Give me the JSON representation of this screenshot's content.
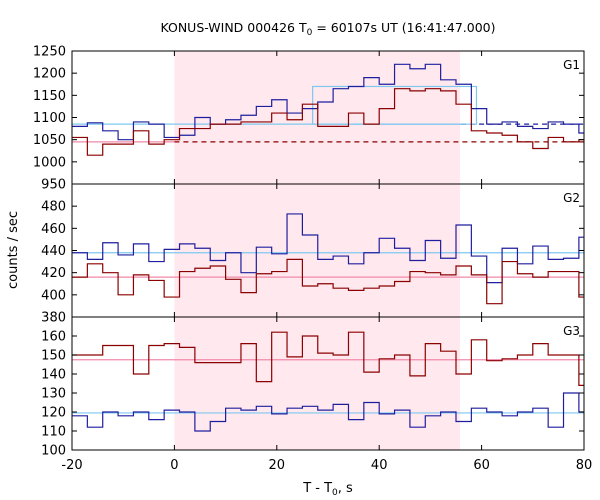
{
  "chart_data": {
    "type": "line",
    "title_prefix": "KONUS-WIND 000426 T",
    "title_sub": "0",
    "title_suffix": " = 60107s UT (16:41:47.000)",
    "xlabel_prefix": "T - T",
    "xlabel_sub": "0",
    "xlabel_suffix": ", s",
    "ylabel": "counts / sec",
    "xlim": [
      -20,
      80
    ],
    "x_ticks": [
      -20,
      0,
      20,
      40,
      60,
      80
    ],
    "highlight_interval": [
      0,
      55.8
    ],
    "colors": {
      "highlight": "#ffe8ee",
      "g_blue": "#1f1f9e",
      "g_red": "#8b0000",
      "bg_blue": "#7ec8f0",
      "bg_red": "#f08aaa"
    },
    "panels": [
      {
        "name": "G1",
        "ylim": [
          950,
          1250
        ],
        "y_ticks": [
          950,
          1000,
          1050,
          1100,
          1150,
          1200,
          1250
        ],
        "bins_x": [
          -20,
          -17,
          -14,
          -11,
          -8,
          -5,
          -2,
          1,
          4,
          7,
          10,
          13,
          16,
          19,
          22,
          25,
          28,
          31,
          34,
          37,
          40,
          43,
          46,
          49,
          52,
          55,
          58,
          61,
          64,
          67,
          70,
          73,
          76,
          79,
          82
        ],
        "series": [
          {
            "color": "blue",
            "values": [
              1080,
              1088,
              1070,
              1050,
              1090,
              1085,
              1055,
              1060,
              1100,
              1085,
              1095,
              1105,
              1125,
              1140,
              1110,
              1120,
              1135,
              1165,
              1170,
              1190,
              1175,
              1220,
              1210,
              1220,
              1185,
              1175,
              1120,
              1085,
              1090,
              1080,
              1075,
              1090,
              1085,
              1065
            ]
          },
          {
            "color": "red",
            "values": [
              1055,
              1015,
              1040,
              1040,
              1070,
              1040,
              1050,
              1075,
              1075,
              1085,
              1085,
              1090,
              1090,
              1110,
              1095,
              1130,
              1080,
              1080,
              1110,
              1085,
              1120,
              1165,
              1160,
              1165,
              1160,
              1130,
              1070,
              1065,
              1060,
              1045,
              1030,
              1055,
              1045,
              1050
            ]
          }
        ],
        "background": [
          {
            "color": "bg_blue",
            "x": [
              -20,
              80
            ],
            "y": 1085,
            "dash_from": 56
          },
          {
            "color": "bg_red",
            "x": [
              -20,
              80
            ],
            "y": 1045,
            "dash_from": 0
          }
        ],
        "boxes": [
          {
            "color": "bg_blue",
            "x": [
              27,
              59
            ],
            "y": [
              1085,
              1170
            ]
          }
        ]
      },
      {
        "name": "G2",
        "ylim": [
          380,
          500
        ],
        "y_ticks": [
          380,
          400,
          420,
          440,
          460,
          480
        ],
        "bins_x": [
          -20,
          -17,
          -14,
          -11,
          -8,
          -5,
          -2,
          1,
          4,
          7,
          10,
          13,
          16,
          19,
          22,
          25,
          28,
          31,
          34,
          37,
          40,
          43,
          46,
          49,
          52,
          55,
          58,
          61,
          64,
          67,
          70,
          73,
          76,
          79,
          82
        ],
        "series": [
          {
            "color": "blue",
            "values": [
              438,
              432,
              447,
              436,
              446,
              430,
              441,
              446,
              442,
              431,
              438,
              420,
              443,
              437,
              473,
              454,
              432,
              435,
              428,
              438,
              451,
              442,
              431,
              449,
              433,
              463,
              435,
              411,
              442,
              428,
              444,
              432,
              433,
              452
            ]
          },
          {
            "color": "red",
            "values": [
              416,
              428,
              420,
              400,
              418,
              413,
              398,
              421,
              424,
              426,
              414,
              402,
              419,
              421,
              432,
              408,
              410,
              406,
              404,
              406,
              408,
              412,
              421,
              420,
              418,
              426,
              418,
              392,
              430,
              419,
              416,
              421,
              421,
              398
            ]
          }
        ],
        "background": [
          {
            "color": "bg_blue",
            "x": [
              -20,
              80
            ],
            "y": 438
          },
          {
            "color": "bg_red",
            "x": [
              -20,
              80
            ],
            "y": 416
          }
        ],
        "boxes": []
      },
      {
        "name": "G3",
        "ylim": [
          100,
          170
        ],
        "y_ticks": [
          100,
          110,
          120,
          130,
          140,
          150,
          160
        ],
        "bins_x": [
          -20,
          -17,
          -14,
          -11,
          -8,
          -5,
          -2,
          1,
          4,
          7,
          10,
          13,
          16,
          19,
          22,
          25,
          28,
          31,
          34,
          37,
          40,
          43,
          46,
          49,
          52,
          55,
          58,
          61,
          64,
          67,
          70,
          73,
          76,
          79,
          82
        ],
        "series": [
          {
            "color": "blue",
            "values": [
              118,
              112,
              120,
              118,
              120,
              116,
              121,
              120,
              110,
              115,
              122,
              121,
              123,
              119,
              122,
              123,
              121,
              124,
              116,
              125,
              119,
              121,
              112,
              118,
              120,
              115,
              122,
              120,
              118,
              120,
              122,
              112,
              130,
              120
            ]
          },
          {
            "color": "red",
            "values": [
              150,
              150,
              155,
              155,
              140,
              155,
              156,
              154,
              146,
              146,
              146,
              156,
              136,
              162,
              149,
              160,
              151,
              150,
              162,
              141,
              148,
              150,
              139,
              156,
              152,
              140,
              158,
              147,
              148,
              150,
              156,
              150,
              150,
              134
            ]
          }
        ],
        "background": [
          {
            "color": "bg_blue",
            "x": [
              -20,
              80
            ],
            "y": 119.5
          },
          {
            "color": "bg_red",
            "x": [
              -20,
              80
            ],
            "y": 147.5
          }
        ],
        "boxes": []
      }
    ]
  }
}
